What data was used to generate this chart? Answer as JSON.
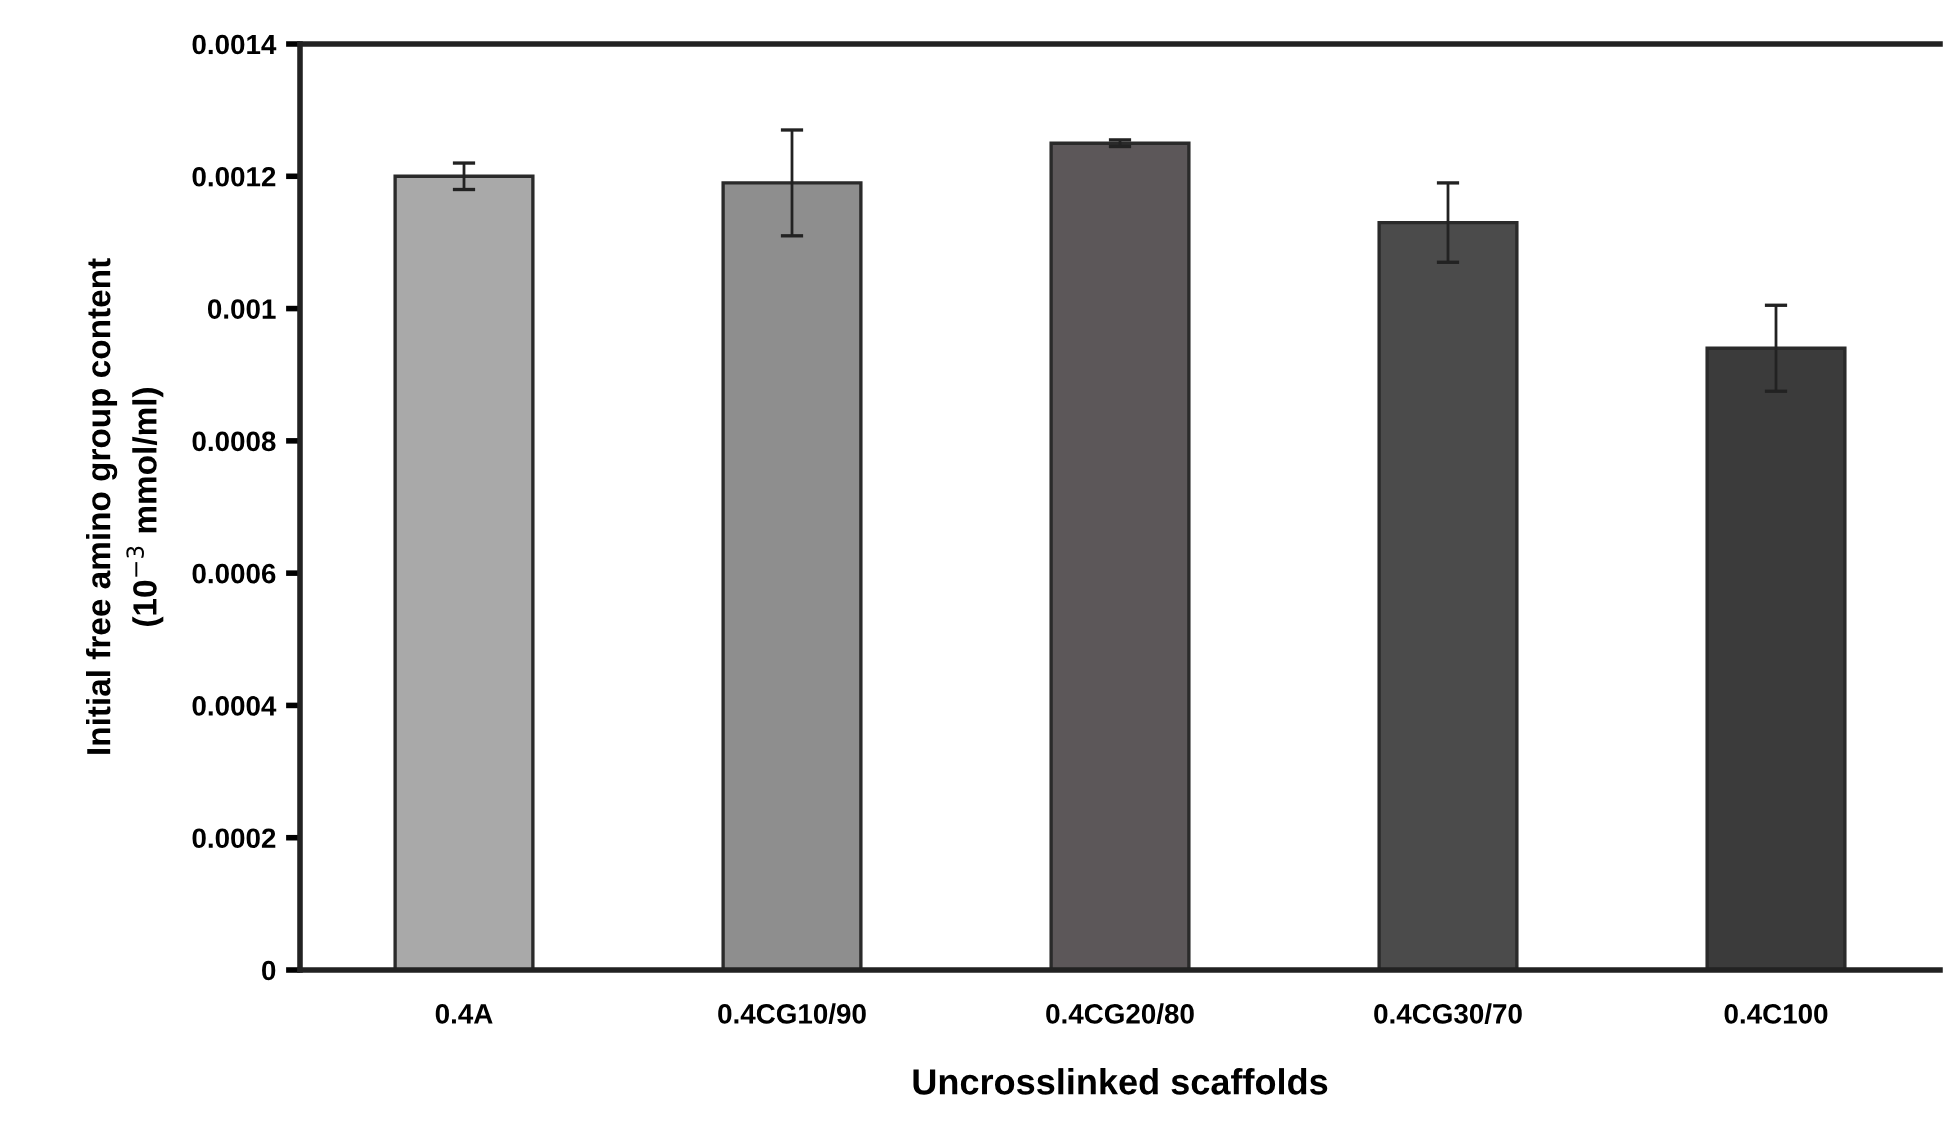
{
  "chart_data": {
    "type": "bar",
    "xlabel": "Uncrosslinked scaffolds",
    "ylabel": "Initial free amino group content\n(10$^{−3}$ mmol/ml)",
    "categories": [
      "0.4A",
      "0.4CG10/90",
      "0.4CG20/80",
      "0.4CG30/70",
      "0.4C100"
    ],
    "values": [
      0.0012,
      0.00119,
      0.00125,
      0.00113,
      0.00094
    ],
    "errors": [
      2e-05,
      8e-05,
      5e-06,
      6e-05,
      6.5e-05
    ],
    "colors": [
      "#a9a9a9",
      "#8e8e8e",
      "#5c5759",
      "#4b4b4b",
      "#3b3b3b"
    ],
    "ylim": [
      0,
      0.0014
    ],
    "yticks": [
      {
        "value": 0,
        "label": "0"
      },
      {
        "value": 0.0002,
        "label": "0.0002"
      },
      {
        "value": 0.0004,
        "label": "0.0004"
      },
      {
        "value": 0.0006,
        "label": "0.0006"
      },
      {
        "value": 0.0008,
        "label": "0.0008"
      },
      {
        "value": 0.001,
        "label": "0.001"
      },
      {
        "value": 0.0012,
        "label": "0.0012"
      },
      {
        "value": 0.0014,
        "label": "0.0014"
      }
    ],
    "grid": false,
    "legend": false
  }
}
